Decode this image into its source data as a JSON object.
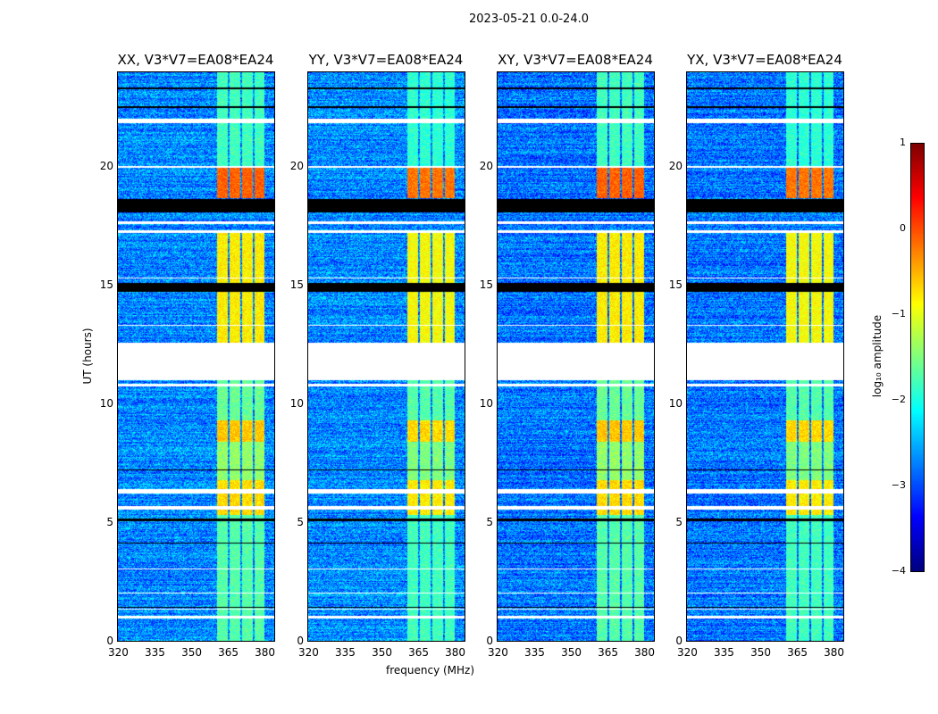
{
  "suptitle": "2023-05-21 0.0-24.0",
  "xlabel": "frequency (MHz)",
  "ylabel": "UT (hours)",
  "colorbar": {
    "label": "log₁₀ amplitude",
    "ticks": [
      "1",
      "0",
      "−1",
      "−2",
      "−3",
      "−4"
    ],
    "range": [
      -4,
      1
    ],
    "colormap": "jet"
  },
  "chart_data": {
    "type": "heatmap",
    "panels": [
      {
        "title": "XX, V3*V7=EA08*EA24"
      },
      {
        "title": "YY, V3*V7=EA08*EA24"
      },
      {
        "title": "XY, V3*V7=EA08*EA24"
      },
      {
        "title": "YX, V3*V7=EA08*EA24"
      }
    ],
    "xlim": [
      320,
      384.7
    ],
    "ylim": [
      0,
      24
    ],
    "xticks": [
      "320",
      "335",
      "350",
      "365",
      "380"
    ],
    "xtick_values": [
      320,
      335,
      350,
      365,
      380
    ],
    "yticks": [
      "0",
      "5",
      "10",
      "15",
      "20"
    ],
    "ytick_values": [
      0,
      5,
      10,
      15,
      20
    ],
    "background_level": -2.7,
    "rfi_subbands_mhz": [
      [
        361,
        365.5
      ],
      [
        366.2,
        370.6
      ],
      [
        371.3,
        375.7
      ],
      [
        376.4,
        380.8
      ]
    ],
    "rfi_level_by_time": [
      {
        "t": [
          0,
          5.3
        ],
        "level": -1.8
      },
      {
        "t": [
          5.3,
          6.8
        ],
        "level": -0.8
      },
      {
        "t": [
          6.8,
          8.4
        ],
        "level": -1.5
      },
      {
        "t": [
          8.4,
          9.3
        ],
        "level": -0.7
      },
      {
        "t": [
          9.3,
          11
        ],
        "level": -1.7
      },
      {
        "t": [
          12.6,
          17.2
        ],
        "level": -0.9
      },
      {
        "t": [
          18.7,
          20
        ],
        "level": -0.2
      },
      {
        "t": [
          20,
          24
        ],
        "level": -1.9
      }
    ],
    "flagged_white": [
      [
        0.95,
        1.05
      ],
      [
        1.3,
        1.35
      ],
      [
        2.0,
        2.05
      ],
      [
        3.0,
        3.05
      ],
      [
        5.55,
        5.7
      ],
      [
        6.2,
        6.4
      ],
      [
        10.75,
        10.85
      ],
      [
        11.0,
        12.6
      ],
      [
        13.3,
        13.35
      ],
      [
        15.3,
        15.35
      ],
      [
        17.2,
        17.35
      ],
      [
        17.6,
        17.7
      ],
      [
        19.95,
        20.05
      ],
      [
        21.85,
        22.05
      ]
    ],
    "flagged_black": [
      [
        1.4,
        1.45
      ],
      [
        4.1,
        4.15
      ],
      [
        5.05,
        5.15
      ],
      [
        7.2,
        7.25
      ],
      [
        14.75,
        15.1
      ],
      [
        18.1,
        18.65
      ],
      [
        22.5,
        22.55
      ],
      [
        23.3,
        23.35
      ]
    ]
  }
}
